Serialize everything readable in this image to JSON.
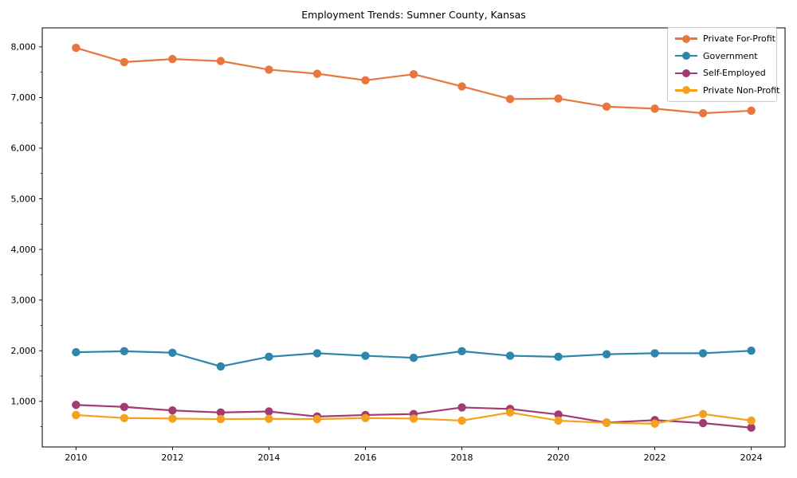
{
  "figure": {
    "title": "Employment Trends: Sumner County, Kansas"
  },
  "chart_data": {
    "type": "line",
    "title": "Employment Trends: Sumner County, Kansas",
    "xlabel": "",
    "ylabel": "",
    "x": [
      2010,
      2011,
      2012,
      2013,
      2014,
      2015,
      2016,
      2017,
      2018,
      2019,
      2020,
      2021,
      2022,
      2023,
      2024
    ],
    "series": [
      {
        "name": "Private For-Profit",
        "color": "#E8763E",
        "values": [
          7980,
          7700,
          7760,
          7720,
          7550,
          7470,
          7340,
          7460,
          7220,
          6970,
          6980,
          6820,
          6780,
          6690,
          6740
        ]
      },
      {
        "name": "Government",
        "color": "#2E86AB",
        "values": [
          1970,
          1990,
          1960,
          1690,
          1880,
          1950,
          1900,
          1860,
          1990,
          1900,
          1880,
          1930,
          1950,
          1950,
          2000
        ]
      },
      {
        "name": "Self-Employed",
        "color": "#A23B72",
        "values": [
          930,
          890,
          820,
          780,
          800,
          700,
          730,
          750,
          880,
          850,
          740,
          580,
          630,
          570,
          480
        ]
      },
      {
        "name": "Private Non-Profit",
        "color": "#F5A01E",
        "values": [
          730,
          670,
          660,
          650,
          655,
          650,
          670,
          660,
          620,
          780,
          620,
          575,
          560,
          750,
          620
        ]
      }
    ],
    "x_tick_labels": [
      "2010",
      "2012",
      "2014",
      "2016",
      "2018",
      "2020",
      "2022",
      "2024"
    ],
    "x_tick_values": [
      2010,
      2012,
      2014,
      2016,
      2018,
      2020,
      2022,
      2024
    ],
    "y_tick_values": [
      1000,
      2000,
      3000,
      4000,
      5000,
      6000,
      7000,
      8000
    ],
    "y_minor_step": 500,
    "xlim": [
      2009.3,
      2024.7
    ],
    "ylim": [
      100,
      8375
    ],
    "grid": false,
    "legend_position": "upper right",
    "background_color": "#ffffff",
    "spine_color": "#000000"
  }
}
